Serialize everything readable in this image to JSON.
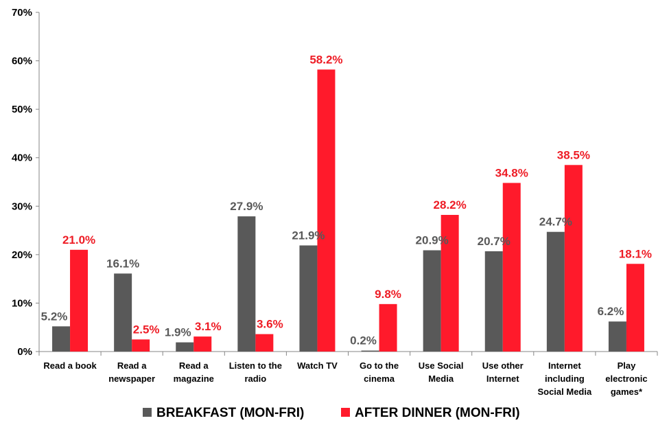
{
  "chart_data": {
    "type": "bar",
    "categories": [
      [
        "Read a book"
      ],
      [
        "Read a",
        "newspaper"
      ],
      [
        "Read a",
        "magazine"
      ],
      [
        "Listen to the",
        "radio"
      ],
      [
        "Watch TV"
      ],
      [
        "Go to the",
        "cinema"
      ],
      [
        "Use Social",
        "Media"
      ],
      [
        "Use other",
        "Internet"
      ],
      [
        "Internet",
        "including",
        "Social Media"
      ],
      [
        "Play",
        "electronic",
        "games*"
      ]
    ],
    "series": [
      {
        "name": "BREAKFAST (MON-FRI)",
        "color": "#595959",
        "label_color": "#595959",
        "values": [
          5.2,
          16.1,
          1.9,
          27.9,
          21.9,
          0.2,
          20.9,
          20.7,
          24.7,
          6.2
        ],
        "labels": [
          "5.2%",
          "16.1%",
          "1.9%",
          "27.9%",
          "21.9%",
          "0.2%",
          "20.9%",
          "20.7%",
          "24.7%",
          "6.2%"
        ]
      },
      {
        "name": "AFTER DINNER (MON-FRI)",
        "color": "#ff1a2b",
        "label_color": "#ee1c25",
        "values": [
          21.0,
          2.5,
          3.1,
          3.6,
          58.2,
          9.8,
          28.2,
          34.8,
          38.5,
          18.1
        ],
        "labels": [
          "21.0%",
          "2.5%",
          "3.1%",
          "3.6%",
          "58.2%",
          "9.8%",
          "28.2%",
          "34.8%",
          "38.5%",
          "18.1%"
        ]
      }
    ],
    "yticks": [
      0,
      10,
      20,
      30,
      40,
      50,
      60,
      70
    ],
    "ytick_labels": [
      "0%",
      "10%",
      "20%",
      "30%",
      "40%",
      "50%",
      "60%",
      "70%"
    ],
    "ylim": [
      0,
      70
    ],
    "grid": false,
    "legend_position": "bottom",
    "title": "",
    "xlabel": "",
    "ylabel": ""
  }
}
